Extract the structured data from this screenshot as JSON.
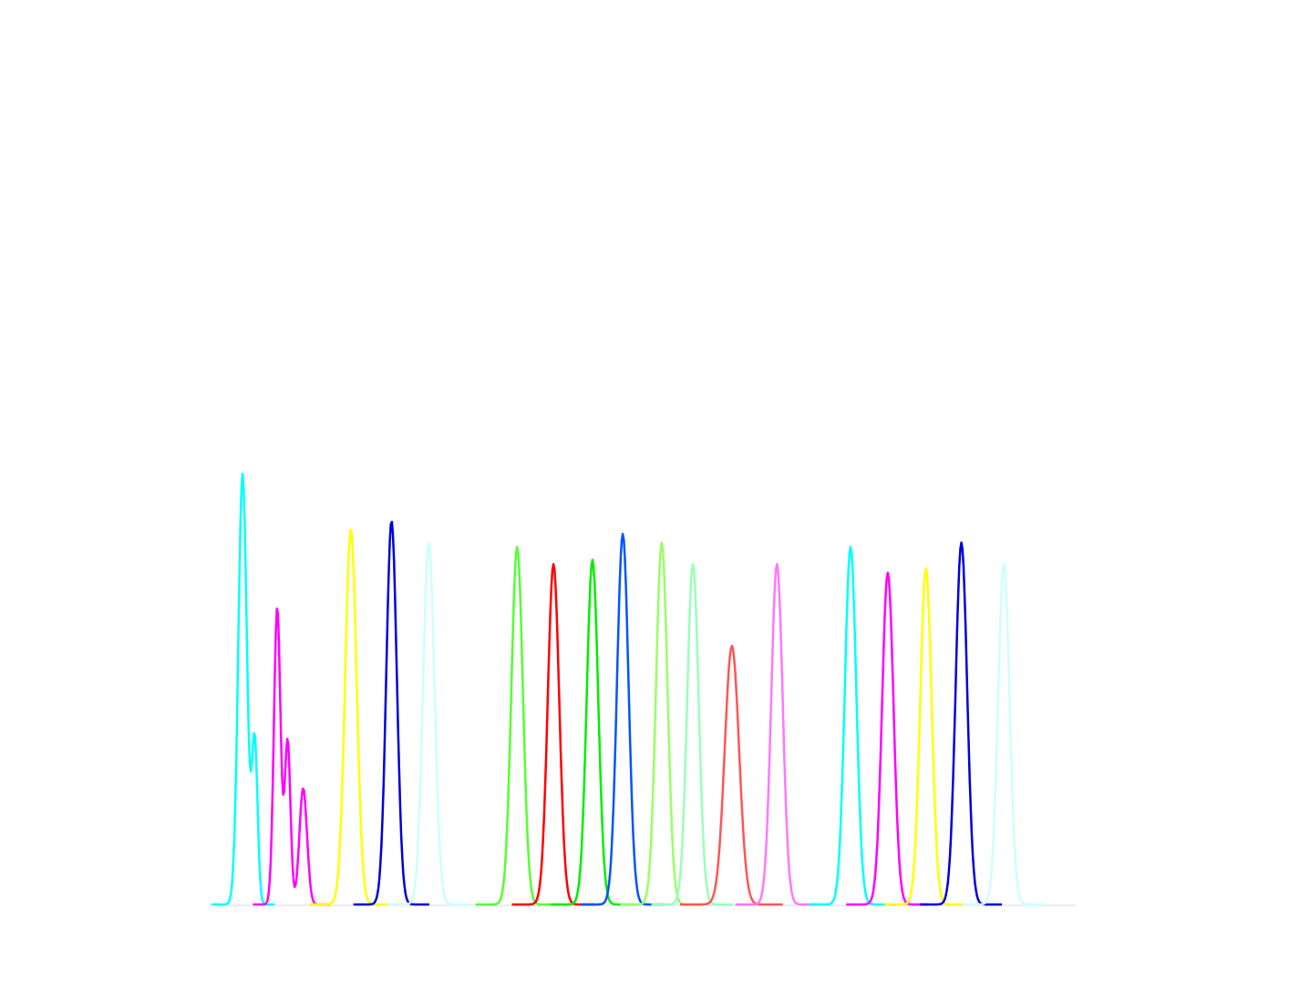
{
  "chart_data": {
    "type": "line",
    "title": "",
    "xlabel": "",
    "ylabel": "",
    "grid": false,
    "legend": "none",
    "xlim": [
      0,
      1000
    ],
    "ylim": [
      0,
      100
    ],
    "series": [
      {
        "color": "#00ffff",
        "peaks": [
          {
            "x": 38,
            "height": 100,
            "width": 9
          }
        ],
        "shoulders": [
          {
            "x": 52,
            "height": 38,
            "width": 6
          }
        ]
      },
      {
        "color": "#ff00ff",
        "peaks": [
          {
            "x": 78,
            "height": 69,
            "width": 7
          },
          {
            "x": 90,
            "height": 38,
            "width": 6
          },
          {
            "x": 108,
            "height": 27,
            "width": 8
          }
        ]
      },
      {
        "color": "#ffff00",
        "peaks": [
          {
            "x": 163,
            "height": 87,
            "width": 12
          }
        ]
      },
      {
        "color": "#0000dd",
        "peaks": [
          {
            "x": 210,
            "height": 89,
            "width": 11
          }
        ]
      },
      {
        "color": "#ccffff",
        "peaks": [
          {
            "x": 253,
            "height": 84,
            "width": 12
          }
        ]
      },
      {
        "color": "#55ff33",
        "peaks": [
          {
            "x": 355,
            "height": 83,
            "width": 12
          }
        ]
      },
      {
        "color": "#ff0000",
        "peaks": [
          {
            "x": 397,
            "height": 79,
            "width": 12
          }
        ]
      },
      {
        "color": "#00ee00",
        "peaks": [
          {
            "x": 442,
            "height": 80,
            "width": 12
          }
        ]
      },
      {
        "color": "#0055ff",
        "peaks": [
          {
            "x": 477,
            "height": 86,
            "width": 12
          }
        ]
      },
      {
        "color": "#99ff66",
        "peaks": [
          {
            "x": 522,
            "height": 84,
            "width": 12
          }
        ]
      },
      {
        "color": "#99ffbb",
        "peaks": [
          {
            "x": 558,
            "height": 79,
            "width": 12
          }
        ]
      },
      {
        "color": "#ff5555",
        "peaks": [
          {
            "x": 603,
            "height": 60,
            "width": 15
          }
        ]
      },
      {
        "color": "#ff77ff",
        "peaks": [
          {
            "x": 655,
            "height": 79,
            "width": 12
          }
        ]
      },
      {
        "color": "#00ffff",
        "peaks": [
          {
            "x": 740,
            "height": 83,
            "width": 12
          }
        ]
      },
      {
        "color": "#ff00ff",
        "peaks": [
          {
            "x": 783,
            "height": 77,
            "width": 12
          }
        ]
      },
      {
        "color": "#ffff00",
        "peaks": [
          {
            "x": 827,
            "height": 78,
            "width": 12
          }
        ]
      },
      {
        "color": "#0000dd",
        "peaks": [
          {
            "x": 868,
            "height": 84,
            "width": 12
          }
        ]
      },
      {
        "color": "#ccffff",
        "peaks": [
          {
            "x": 917,
            "height": 79,
            "width": 12
          }
        ]
      }
    ],
    "baseline_color": "#e6e6f0"
  }
}
